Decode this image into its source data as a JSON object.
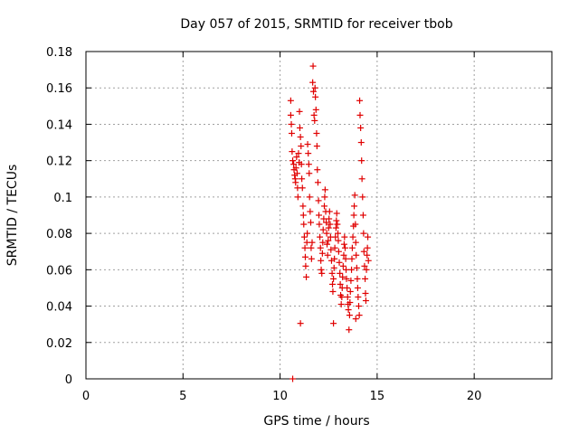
{
  "chart_data": {
    "type": "scatter",
    "title": "Day 057 of 2015, SRMTID for receiver tbob",
    "xlabel": "GPS time / hours",
    "ylabel": "SRMTID / TECUs",
    "xlim": [
      0,
      24
    ],
    "ylim": [
      0,
      0.18
    ],
    "x_ticks": [
      0,
      5,
      10,
      15,
      20
    ],
    "x_tick_labels": [
      "0",
      "5",
      "10",
      "15",
      "20"
    ],
    "y_ticks": [
      0,
      0.02,
      0.04,
      0.06,
      0.08,
      0.1,
      0.12,
      0.14,
      0.16,
      0.18
    ],
    "y_tick_labels": [
      "0",
      "0.02",
      "0.04",
      "0.06",
      "0.08",
      "0.1",
      "0.12",
      "0.14",
      "0.16",
      "0.18"
    ],
    "grid": true,
    "marker": "+",
    "color": "#e00000",
    "series": [
      {
        "name": "SRMTID",
        "points": [
          [
            10.65,
            0.0
          ],
          [
            10.55,
            0.153
          ],
          [
            10.55,
            0.145
          ],
          [
            10.58,
            0.14
          ],
          [
            10.6,
            0.135
          ],
          [
            10.62,
            0.125
          ],
          [
            10.65,
            0.12
          ],
          [
            10.7,
            0.118
          ],
          [
            10.72,
            0.115
          ],
          [
            10.75,
            0.112
          ],
          [
            10.78,
            0.11
          ],
          [
            10.8,
            0.108
          ],
          [
            10.82,
            0.116
          ],
          [
            10.85,
            0.122
          ],
          [
            10.88,
            0.113
          ],
          [
            10.9,
            0.105
          ],
          [
            10.92,
            0.1
          ],
          [
            10.95,
            0.124
          ],
          [
            10.98,
            0.119
          ],
          [
            11.0,
            0.147
          ],
          [
            11.02,
            0.138
          ],
          [
            11.05,
            0.133
          ],
          [
            11.08,
            0.128
          ],
          [
            11.1,
            0.118
          ],
          [
            11.12,
            0.11
          ],
          [
            11.15,
            0.105
          ],
          [
            11.18,
            0.095
          ],
          [
            11.2,
            0.09
          ],
          [
            11.22,
            0.085
          ],
          [
            11.25,
            0.078
          ],
          [
            11.28,
            0.072
          ],
          [
            11.3,
            0.067
          ],
          [
            11.32,
            0.062
          ],
          [
            11.35,
            0.056
          ],
          [
            11.38,
            0.075
          ],
          [
            11.4,
            0.08
          ],
          [
            11.42,
            0.129
          ],
          [
            11.45,
            0.124
          ],
          [
            11.48,
            0.118
          ],
          [
            11.5,
            0.113
          ],
          [
            11.52,
            0.1
          ],
          [
            11.55,
            0.092
          ],
          [
            11.58,
            0.086
          ],
          [
            11.6,
            0.072
          ],
          [
            11.62,
            0.066
          ],
          [
            11.65,
            0.075
          ],
          [
            11.68,
            0.163
          ],
          [
            11.7,
            0.172
          ],
          [
            11.72,
            0.158
          ],
          [
            11.75,
            0.145
          ],
          [
            11.78,
            0.142
          ],
          [
            11.8,
            0.16
          ],
          [
            11.82,
            0.155
          ],
          [
            11.85,
            0.148
          ],
          [
            11.88,
            0.135
          ],
          [
            11.9,
            0.128
          ],
          [
            11.92,
            0.115
          ],
          [
            11.95,
            0.108
          ],
          [
            11.98,
            0.098
          ],
          [
            12.0,
            0.09
          ],
          [
            12.02,
            0.085
          ],
          [
            12.05,
            0.078
          ],
          [
            12.08,
            0.072
          ],
          [
            12.1,
            0.065
          ],
          [
            12.12,
            0.06
          ],
          [
            12.15,
            0.058
          ],
          [
            12.18,
            0.069
          ],
          [
            12.2,
            0.075
          ],
          [
            12.22,
            0.082
          ],
          [
            12.25,
            0.088
          ],
          [
            12.28,
            0.095
          ],
          [
            12.3,
            0.1
          ],
          [
            12.32,
            0.104
          ],
          [
            12.35,
            0.092
          ],
          [
            12.38,
            0.086
          ],
          [
            12.4,
            0.08
          ],
          [
            12.42,
            0.074
          ],
          [
            12.45,
            0.068
          ],
          [
            12.48,
            0.076
          ],
          [
            12.5,
            0.083
          ],
          [
            12.52,
            0.088
          ],
          [
            12.55,
            0.092
          ],
          [
            12.58,
            0.085
          ],
          [
            12.6,
            0.078
          ],
          [
            12.62,
            0.071
          ],
          [
            12.65,
            0.065
          ],
          [
            12.68,
            0.058
          ],
          [
            12.7,
            0.052
          ],
          [
            12.72,
            0.048
          ],
          [
            12.75,
            0.055
          ],
          [
            12.78,
            0.061
          ],
          [
            12.8,
            0.066
          ],
          [
            12.82,
            0.072
          ],
          [
            12.85,
            0.078
          ],
          [
            12.88,
            0.083
          ],
          [
            12.9,
            0.087
          ],
          [
            12.92,
            0.091
          ],
          [
            12.95,
            0.085
          ],
          [
            12.98,
            0.08
          ],
          [
            13.0,
            0.076
          ],
          [
            13.02,
            0.07
          ],
          [
            13.05,
            0.064
          ],
          [
            13.08,
            0.058
          ],
          [
            13.1,
            0.052
          ],
          [
            13.12,
            0.046
          ],
          [
            13.15,
            0.041
          ],
          [
            13.18,
            0.045
          ],
          [
            13.2,
            0.05
          ],
          [
            13.22,
            0.056
          ],
          [
            13.25,
            0.062
          ],
          [
            13.28,
            0.068
          ],
          [
            13.3,
            0.074
          ],
          [
            13.32,
            0.078
          ],
          [
            13.35,
            0.072
          ],
          [
            13.38,
            0.066
          ],
          [
            13.4,
            0.06
          ],
          [
            13.42,
            0.055
          ],
          [
            13.45,
            0.05
          ],
          [
            13.48,
            0.045
          ],
          [
            13.5,
            0.041
          ],
          [
            13.52,
            0.038
          ],
          [
            13.55,
            0.027
          ],
          [
            13.58,
            0.035
          ],
          [
            13.6,
            0.042
          ],
          [
            13.62,
            0.048
          ],
          [
            13.65,
            0.054
          ],
          [
            13.68,
            0.06
          ],
          [
            13.7,
            0.066
          ],
          [
            13.72,
            0.072
          ],
          [
            13.75,
            0.078
          ],
          [
            13.78,
            0.084
          ],
          [
            13.8,
            0.09
          ],
          [
            13.82,
            0.095
          ],
          [
            13.85,
            0.101
          ],
          [
            13.88,
            0.085
          ],
          [
            13.9,
            0.075
          ],
          [
            13.92,
            0.068
          ],
          [
            13.95,
            0.061
          ],
          [
            13.98,
            0.055
          ],
          [
            14.0,
            0.05
          ],
          [
            14.02,
            0.045
          ],
          [
            14.05,
            0.04
          ],
          [
            14.08,
            0.035
          ],
          [
            14.1,
            0.153
          ],
          [
            14.12,
            0.145
          ],
          [
            14.15,
            0.138
          ],
          [
            14.18,
            0.13
          ],
          [
            14.2,
            0.12
          ],
          [
            14.22,
            0.11
          ],
          [
            14.25,
            0.1
          ],
          [
            14.28,
            0.09
          ],
          [
            14.3,
            0.08
          ],
          [
            14.32,
            0.07
          ],
          [
            14.35,
            0.062
          ],
          [
            14.38,
            0.055
          ],
          [
            14.4,
            0.047
          ],
          [
            14.42,
            0.043
          ],
          [
            14.45,
            0.06
          ],
          [
            14.48,
            0.068
          ],
          [
            14.5,
            0.072
          ],
          [
            14.52,
            0.078
          ],
          [
            14.55,
            0.065
          ],
          [
            11.05,
            0.0305
          ],
          [
            12.75,
            0.0305
          ],
          [
            13.9,
            0.033
          ]
        ]
      }
    ]
  }
}
